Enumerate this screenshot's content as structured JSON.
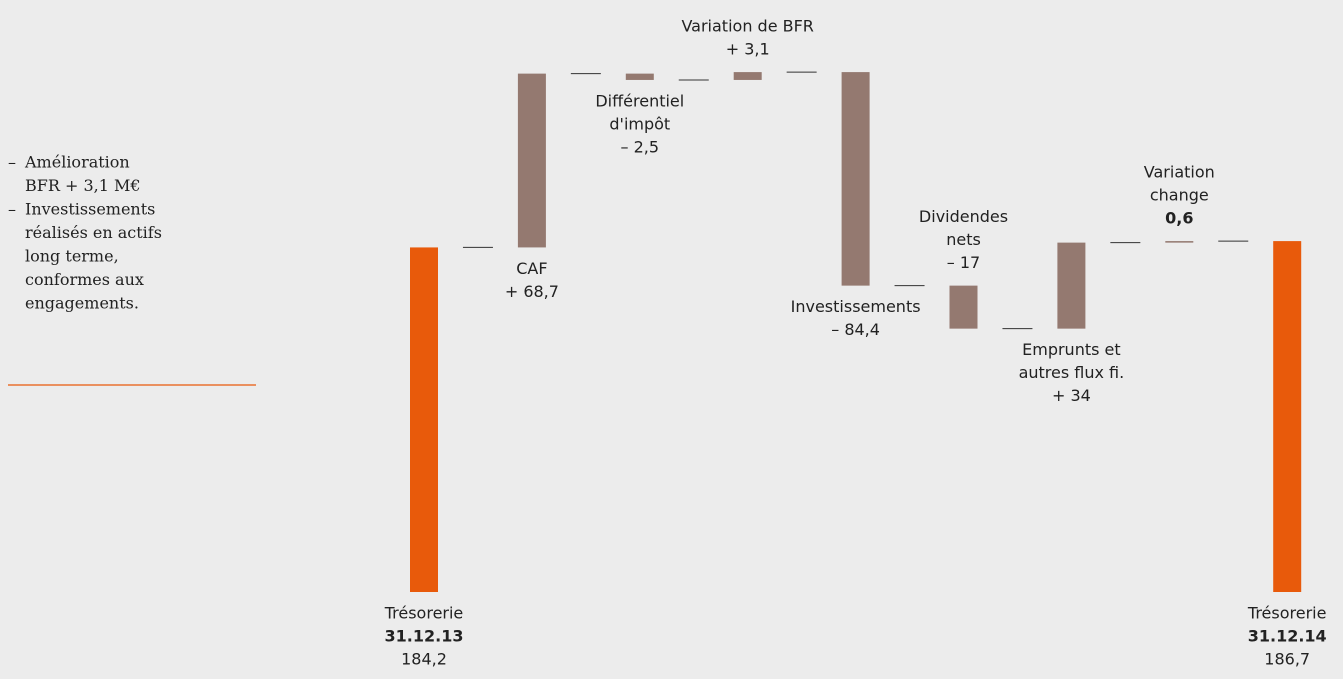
{
  "chart_data": {
    "type": "waterfall",
    "categories": [
      [
        "Trésorerie",
        "31.12.13"
      ],
      [
        "CAF"
      ],
      [
        "Différentiel",
        "d'impôt"
      ],
      [
        "Variation de BFR"
      ],
      [
        "Investissements"
      ],
      [
        "Dividendes",
        "nets"
      ],
      [
        "Emprunts et",
        "autres flux fi."
      ],
      [
        "Variation",
        "change"
      ],
      [
        "Trésorerie",
        "31.12.14"
      ]
    ],
    "values": [
      184.2,
      68.7,
      -2.5,
      3.1,
      -84.4,
      -17,
      34,
      0.6,
      186.7
    ],
    "value_labels": [
      "184,2",
      "+ 68,7",
      "– 2,5",
      "+ 3,1",
      "– 84,4",
      "– 17",
      "+ 34",
      "0,6",
      "186,7"
    ],
    "totals": [
      true,
      false,
      false,
      false,
      false,
      false,
      false,
      false,
      true
    ],
    "bold_values": [
      false,
      false,
      false,
      false,
      false,
      false,
      false,
      true,
      false
    ],
    "label_positions": [
      "below",
      "below",
      "below",
      "above",
      "below",
      "above",
      "below",
      "above",
      "below"
    ],
    "color": "#947970",
    "total_color": "#e85a0b",
    "ylim": [
      48,
      282
    ],
    "notes": [
      [
        "Amélioration",
        "BFR + 3,1 M€"
      ],
      [
        "Investissements",
        "réalisés en actifs",
        "long terme,",
        "conformes aux",
        "engagements."
      ]
    ]
  }
}
